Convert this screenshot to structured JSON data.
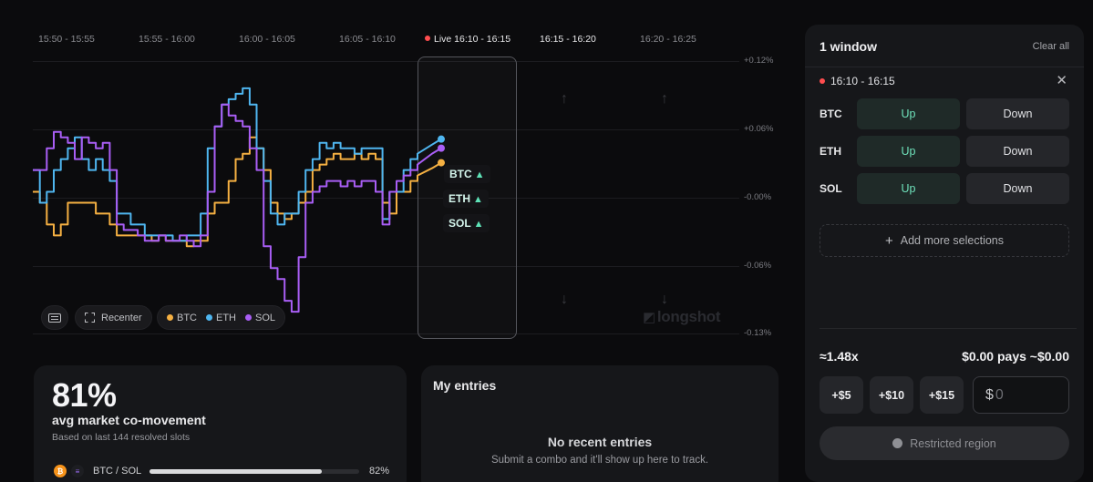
{
  "timeline": {
    "slots": [
      "15:50 - 15:55",
      "15:55 - 16:00",
      "16:00 - 16:05",
      "16:05 - 16:10",
      "Live 16:10 - 16:15",
      "16:15 - 16:20",
      "16:20 - 16:25"
    ]
  },
  "y_axis": [
    "+0.12%",
    "+0.06%",
    "-0.00%",
    "-0.06%",
    "-0.13%"
  ],
  "chart_data": {
    "type": "line",
    "ylabel": "",
    "ylim": [
      -0.13,
      0.12
    ],
    "series": [
      {
        "name": "BTC",
        "color": "#f5b042",
        "values": [
          0.0,
          -0.01,
          -0.03,
          -0.04,
          -0.03,
          -0.01,
          -0.01,
          -0.01,
          -0.01,
          -0.02,
          -0.02,
          -0.03,
          -0.04,
          -0.04,
          -0.04,
          -0.04,
          -0.04,
          -0.045,
          -0.04,
          -0.045,
          -0.045,
          -0.045,
          -0.05,
          -0.045,
          -0.045,
          -0.02,
          -0.01,
          -0.01,
          0.01,
          0.03,
          0.035,
          0.05,
          0.04,
          0.02,
          -0.01,
          -0.02,
          -0.025,
          -0.02,
          -0.01,
          0.0,
          0.02,
          0.025,
          0.03,
          0.035,
          0.03,
          0.03,
          0.035,
          0.03,
          0.035,
          0.03,
          -0.01,
          -0.02,
          0.0,
          0.0,
          0.01,
          0.015
        ]
      },
      {
        "name": "ETH",
        "color": "#4fb6f0",
        "values": [
          0.02,
          -0.01,
          0.0,
          0.02,
          0.03,
          0.04,
          0.05,
          0.03,
          0.02,
          0.03,
          0.02,
          0.01,
          -0.02,
          -0.02,
          -0.03,
          -0.03,
          -0.04,
          -0.04,
          -0.04,
          -0.04,
          -0.045,
          -0.045,
          -0.04,
          -0.04,
          -0.02,
          0.04,
          0.06,
          0.08,
          0.085,
          0.09,
          0.095,
          0.08,
          0.04,
          0.01,
          -0.02,
          -0.03,
          -0.02,
          -0.02,
          0.0,
          0.02,
          0.03,
          0.045,
          0.04,
          0.045,
          0.04,
          0.04,
          0.035,
          0.04,
          0.04,
          0.04,
          -0.025,
          0.0,
          0.0,
          0.02,
          0.03,
          0.035
        ]
      },
      {
        "name": "SOL",
        "color": "#a95ef5",
        "values": [
          0.02,
          0.02,
          0.04,
          0.055,
          0.05,
          0.045,
          0.03,
          0.05,
          0.045,
          0.04,
          0.045,
          0.02,
          -0.03,
          -0.035,
          -0.035,
          -0.04,
          -0.045,
          -0.045,
          -0.04,
          -0.045,
          -0.045,
          -0.04,
          -0.045,
          -0.05,
          -0.04,
          0.0,
          0.06,
          0.08,
          0.07,
          0.065,
          0.06,
          0.04,
          0.02,
          -0.05,
          -0.07,
          -0.08,
          -0.1,
          -0.11,
          -0.06,
          -0.01,
          0.0,
          0.005,
          0.01,
          0.01,
          0.005,
          0.01,
          0.005,
          0.01,
          0.01,
          0.0,
          -0.03,
          0.0,
          0.01,
          0.015,
          0.02,
          0.025
        ]
      }
    ]
  },
  "live_tags": [
    {
      "asset": "BTC",
      "arrow": "▲"
    },
    {
      "asset": "ETH",
      "arrow": "▲"
    },
    {
      "asset": "SOL",
      "arrow": "▲"
    }
  ],
  "toolbar": {
    "recenter_label": "Recenter",
    "legend": [
      {
        "name": "BTC",
        "color": "#f5b042"
      },
      {
        "name": "ETH",
        "color": "#4fb6f0"
      },
      {
        "name": "SOL",
        "color": "#a95ef5"
      }
    ]
  },
  "watermark": "longshot",
  "stats": {
    "pct": "81%",
    "title": "avg market co-movement",
    "note": "Based on last 144 resolved slots",
    "pair": {
      "label": "BTC / SOL",
      "pct_text": "82%",
      "fraction": 0.82
    }
  },
  "entries": {
    "title": "My entries",
    "empty_title": "No recent entries",
    "empty_hint": "Submit a combo and it'll show up here to track."
  },
  "betslip": {
    "title": "1 window",
    "clear_all": "Clear all",
    "window": "16:10 - 16:15",
    "rows": [
      {
        "asset": "BTC",
        "up": "Up",
        "down": "Down"
      },
      {
        "asset": "ETH",
        "up": "Up",
        "down": "Down"
      },
      {
        "asset": "SOL",
        "up": "Up",
        "down": "Down"
      }
    ],
    "add_more": "Add more selections",
    "multiplier": "≈1.48x",
    "payout": "$0.00 pays ~$0.00",
    "amounts": [
      "+$5",
      "+$10",
      "+$15"
    ],
    "currency": "$",
    "amount_value": "0",
    "restricted": "Restricted region"
  }
}
